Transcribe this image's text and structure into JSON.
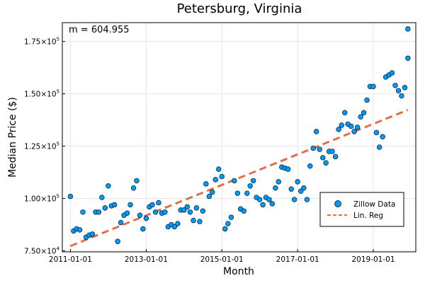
{
  "chart_data": {
    "type": "scatter",
    "title": "Petersburg, Virginia",
    "xlabel": "Month",
    "ylabel": "Median Price ($)",
    "annotation": "m = 604.955",
    "xlim": [
      "2010-10-15",
      "2020-02-15"
    ],
    "ylim": [
      74500,
      184000
    ],
    "x_ticks": [
      {
        "date": "2011-01-01",
        "label": "2011-01-01"
      },
      {
        "date": "2013-01-01",
        "label": "2013-01-01"
      },
      {
        "date": "2015-01-01",
        "label": "2015-01-01"
      },
      {
        "date": "2017-01-01",
        "label": "2017-01-01"
      },
      {
        "date": "2019-01-01",
        "label": "2019-01-01"
      }
    ],
    "y_ticks": [
      {
        "value": 75000,
        "mantissa": "7.50",
        "exp": "4"
      },
      {
        "value": 100000,
        "mantissa": "1.00",
        "exp": "5"
      },
      {
        "value": 125000,
        "mantissa": "1.25",
        "exp": "5"
      },
      {
        "value": 150000,
        "mantissa": "1.50",
        "exp": "5"
      },
      {
        "value": 175000,
        "mantissa": "1.75",
        "exp": "5"
      }
    ],
    "grid": true,
    "legend_position": "bottom-right",
    "colors": {
      "scatter": "#009AFA",
      "regression": "#E26F46"
    },
    "series": [
      {
        "name": "Zillow Data",
        "kind": "scatter",
        "x": [
          "2011-01-01",
          "2011-02-01",
          "2011-03-01",
          "2011-04-01",
          "2011-05-01",
          "2011-06-01",
          "2011-07-01",
          "2011-08-01",
          "2011-09-01",
          "2011-10-01",
          "2011-11-01",
          "2011-12-01",
          "2012-01-01",
          "2012-02-01",
          "2012-03-01",
          "2012-04-01",
          "2012-05-01",
          "2012-06-01",
          "2012-07-01",
          "2012-08-01",
          "2012-09-01",
          "2012-10-01",
          "2012-11-01",
          "2012-12-01",
          "2013-01-01",
          "2013-02-01",
          "2013-03-01",
          "2013-04-01",
          "2013-05-01",
          "2013-06-01",
          "2013-07-01",
          "2013-08-01",
          "2013-09-01",
          "2013-10-01",
          "2013-11-01",
          "2013-12-01",
          "2014-01-01",
          "2014-02-01",
          "2014-03-01",
          "2014-04-01",
          "2014-05-01",
          "2014-06-01",
          "2014-07-01",
          "2014-08-01",
          "2014-09-01",
          "2014-10-01",
          "2014-11-01",
          "2014-12-01",
          "2015-01-01",
          "2015-02-01",
          "2015-03-01",
          "2015-04-01",
          "2015-05-01",
          "2015-06-01",
          "2015-07-01",
          "2015-08-01",
          "2015-09-01",
          "2015-10-01",
          "2015-11-01",
          "2015-12-01",
          "2016-01-01",
          "2016-02-01",
          "2016-03-01",
          "2016-04-01",
          "2016-05-01",
          "2016-06-01",
          "2016-07-01",
          "2016-08-01",
          "2016-09-01",
          "2016-10-01",
          "2016-11-01",
          "2016-12-01",
          "2017-01-01",
          "2017-02-01",
          "2017-03-01",
          "2017-04-01",
          "2017-05-01",
          "2017-06-01",
          "2017-07-01",
          "2017-08-01",
          "2017-09-01",
          "2017-10-01",
          "2017-11-01",
          "2017-12-01",
          "2018-01-01",
          "2018-02-01",
          "2018-03-01",
          "2018-04-01",
          "2018-05-01",
          "2018-06-01",
          "2018-07-01",
          "2018-08-01",
          "2018-09-01",
          "2018-10-01",
          "2018-11-01",
          "2018-12-01",
          "2019-01-01",
          "2019-02-01",
          "2019-03-01",
          "2019-04-01",
          "2019-05-01",
          "2019-06-01",
          "2019-07-01",
          "2019-08-01",
          "2019-09-01",
          "2019-10-01",
          "2019-11-01",
          "2019-12-01"
        ],
        "y": [
          101000,
          84500,
          85500,
          85000,
          93500,
          81500,
          82500,
          83000,
          93500,
          93500,
          100500,
          95500,
          106000,
          96500,
          97000,
          79500,
          88500,
          92000,
          93000,
          97000,
          105000,
          108500,
          92000,
          85500,
          90500,
          96000,
          97000,
          93500,
          98000,
          93000,
          93500,
          86500,
          87500,
          86500,
          88000,
          94500,
          94500,
          96000,
          93500,
          89500,
          95500,
          89000,
          94000,
          107000,
          101000,
          103000,
          109000,
          114000,
          110500,
          85500,
          88000,
          91000,
          108500,
          102500,
          95000,
          94000,
          102500,
          106000,
          108500,
          100500,
          99500,
          97000,
          100500,
          99500,
          97500,
          105000,
          108000,
          115000,
          114500,
          114000,
          104500,
          99500,
          108000,
          103500,
          105000,
          99500,
          115500,
          124000,
          132000,
          123500,
          119500,
          117000,
          122500,
          122500,
          120000,
          133000,
          135000,
          141000,
          135500,
          134500,
          132000,
          134000,
          139000,
          141000,
          147000,
          153500,
          153500,
          131500,
          124500,
          129500,
          158000,
          159000,
          160000,
          154000,
          151500,
          149000,
          153000,
          167000
        ]
      },
      {
        "name": "Lin. Reg",
        "kind": "line",
        "x": [
          "2011-01-01",
          "2019-12-01"
        ],
        "y": [
          77300,
          142300
        ]
      }
    ],
    "extra_points": [
      {
        "x": "2019-12-01",
        "y": 181000
      }
    ]
  }
}
